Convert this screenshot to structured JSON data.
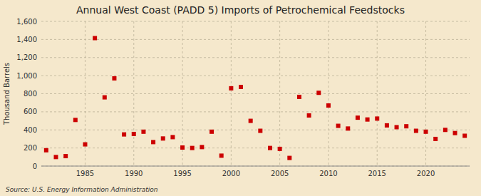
{
  "chart_data": {
    "type": "scatter",
    "title": "Annual West Coast (PADD 5) Imports of Petrochemical Feedstocks",
    "ylabel": "Thousand Barrels",
    "annotations": [
      "Source: U.S. Energy Information Administration"
    ],
    "color": "#cc0000",
    "marker": "square",
    "grid": true,
    "xlim": [
      1980.5,
      2024.5
    ],
    "xticks": [
      1985,
      1990,
      1995,
      2000,
      2005,
      2010,
      2015,
      2020
    ],
    "ylim": [
      0,
      1600
    ],
    "yticks": [
      0,
      200,
      400,
      600,
      800,
      {
        "value": 1000,
        "label": "1,000"
      },
      {
        "value": 1200,
        "label": "1,200"
      },
      {
        "value": 1400,
        "label": "1,400"
      },
      {
        "value": 1600,
        "label": "1,600"
      }
    ],
    "x": [
      1981,
      1982,
      1983,
      1984,
      1985,
      1986,
      1987,
      1988,
      1989,
      1990,
      1991,
      1992,
      1993,
      1994,
      1995,
      1996,
      1997,
      1998,
      1999,
      2000,
      2001,
      2002,
      2003,
      2004,
      2005,
      2006,
      2007,
      2008,
      2009,
      2010,
      2011,
      2012,
      2013,
      2014,
      2015,
      2016,
      2017,
      2018,
      2019,
      2020,
      2021,
      2022,
      2023,
      2024
    ],
    "values": [
      175,
      100,
      110,
      510,
      240,
      1415,
      760,
      970,
      350,
      355,
      380,
      265,
      305,
      320,
      205,
      200,
      210,
      380,
      115,
      860,
      875,
      500,
      390,
      200,
      190,
      90,
      765,
      560,
      810,
      670,
      445,
      415,
      535,
      515,
      525,
      450,
      430,
      440,
      390,
      380,
      300,
      400,
      365,
      335
    ]
  }
}
